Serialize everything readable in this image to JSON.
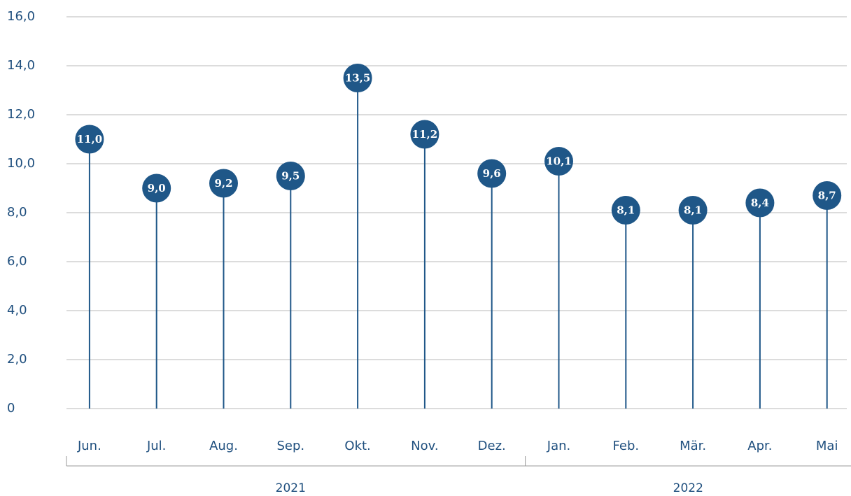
{
  "chart_data": {
    "type": "lollipop",
    "categories": [
      "Jun.",
      "Jul.",
      "Aug.",
      "Sep.",
      "Okt.",
      "Nov.",
      "Dez.",
      "Jan.",
      "Feb.",
      "Mär.",
      "Apr.",
      "Mai"
    ],
    "values": [
      11.0,
      9.0,
      9.2,
      9.5,
      13.5,
      11.2,
      9.6,
      10.1,
      8.1,
      8.1,
      8.4,
      8.7
    ],
    "value_labels": [
      "11,0",
      "9,0",
      "9,2",
      "9,5",
      "13,5",
      "11,2",
      "9,6",
      "10,1",
      "8,1",
      "8,1",
      "8,4",
      "8,7"
    ],
    "color": "#1f5788",
    "ylim": [
      0,
      16
    ],
    "yticks": [
      0,
      {
        "value": 2,
        "label": "2,0"
      },
      {
        "value": 4,
        "label": "4,0"
      },
      {
        "value": 6,
        "label": "6,0"
      },
      {
        "value": 8,
        "label": "8,0"
      },
      {
        "value": 10,
        "label": "10,0"
      },
      {
        "value": 12,
        "label": "12,0"
      },
      {
        "value": 14,
        "label": "14,0"
      },
      {
        "value": 16,
        "label": "16,0"
      }
    ],
    "grid": true,
    "x_groups": [
      {
        "label": "2021",
        "count": 7
      },
      {
        "label": "2022",
        "count": 5
      }
    ]
  }
}
